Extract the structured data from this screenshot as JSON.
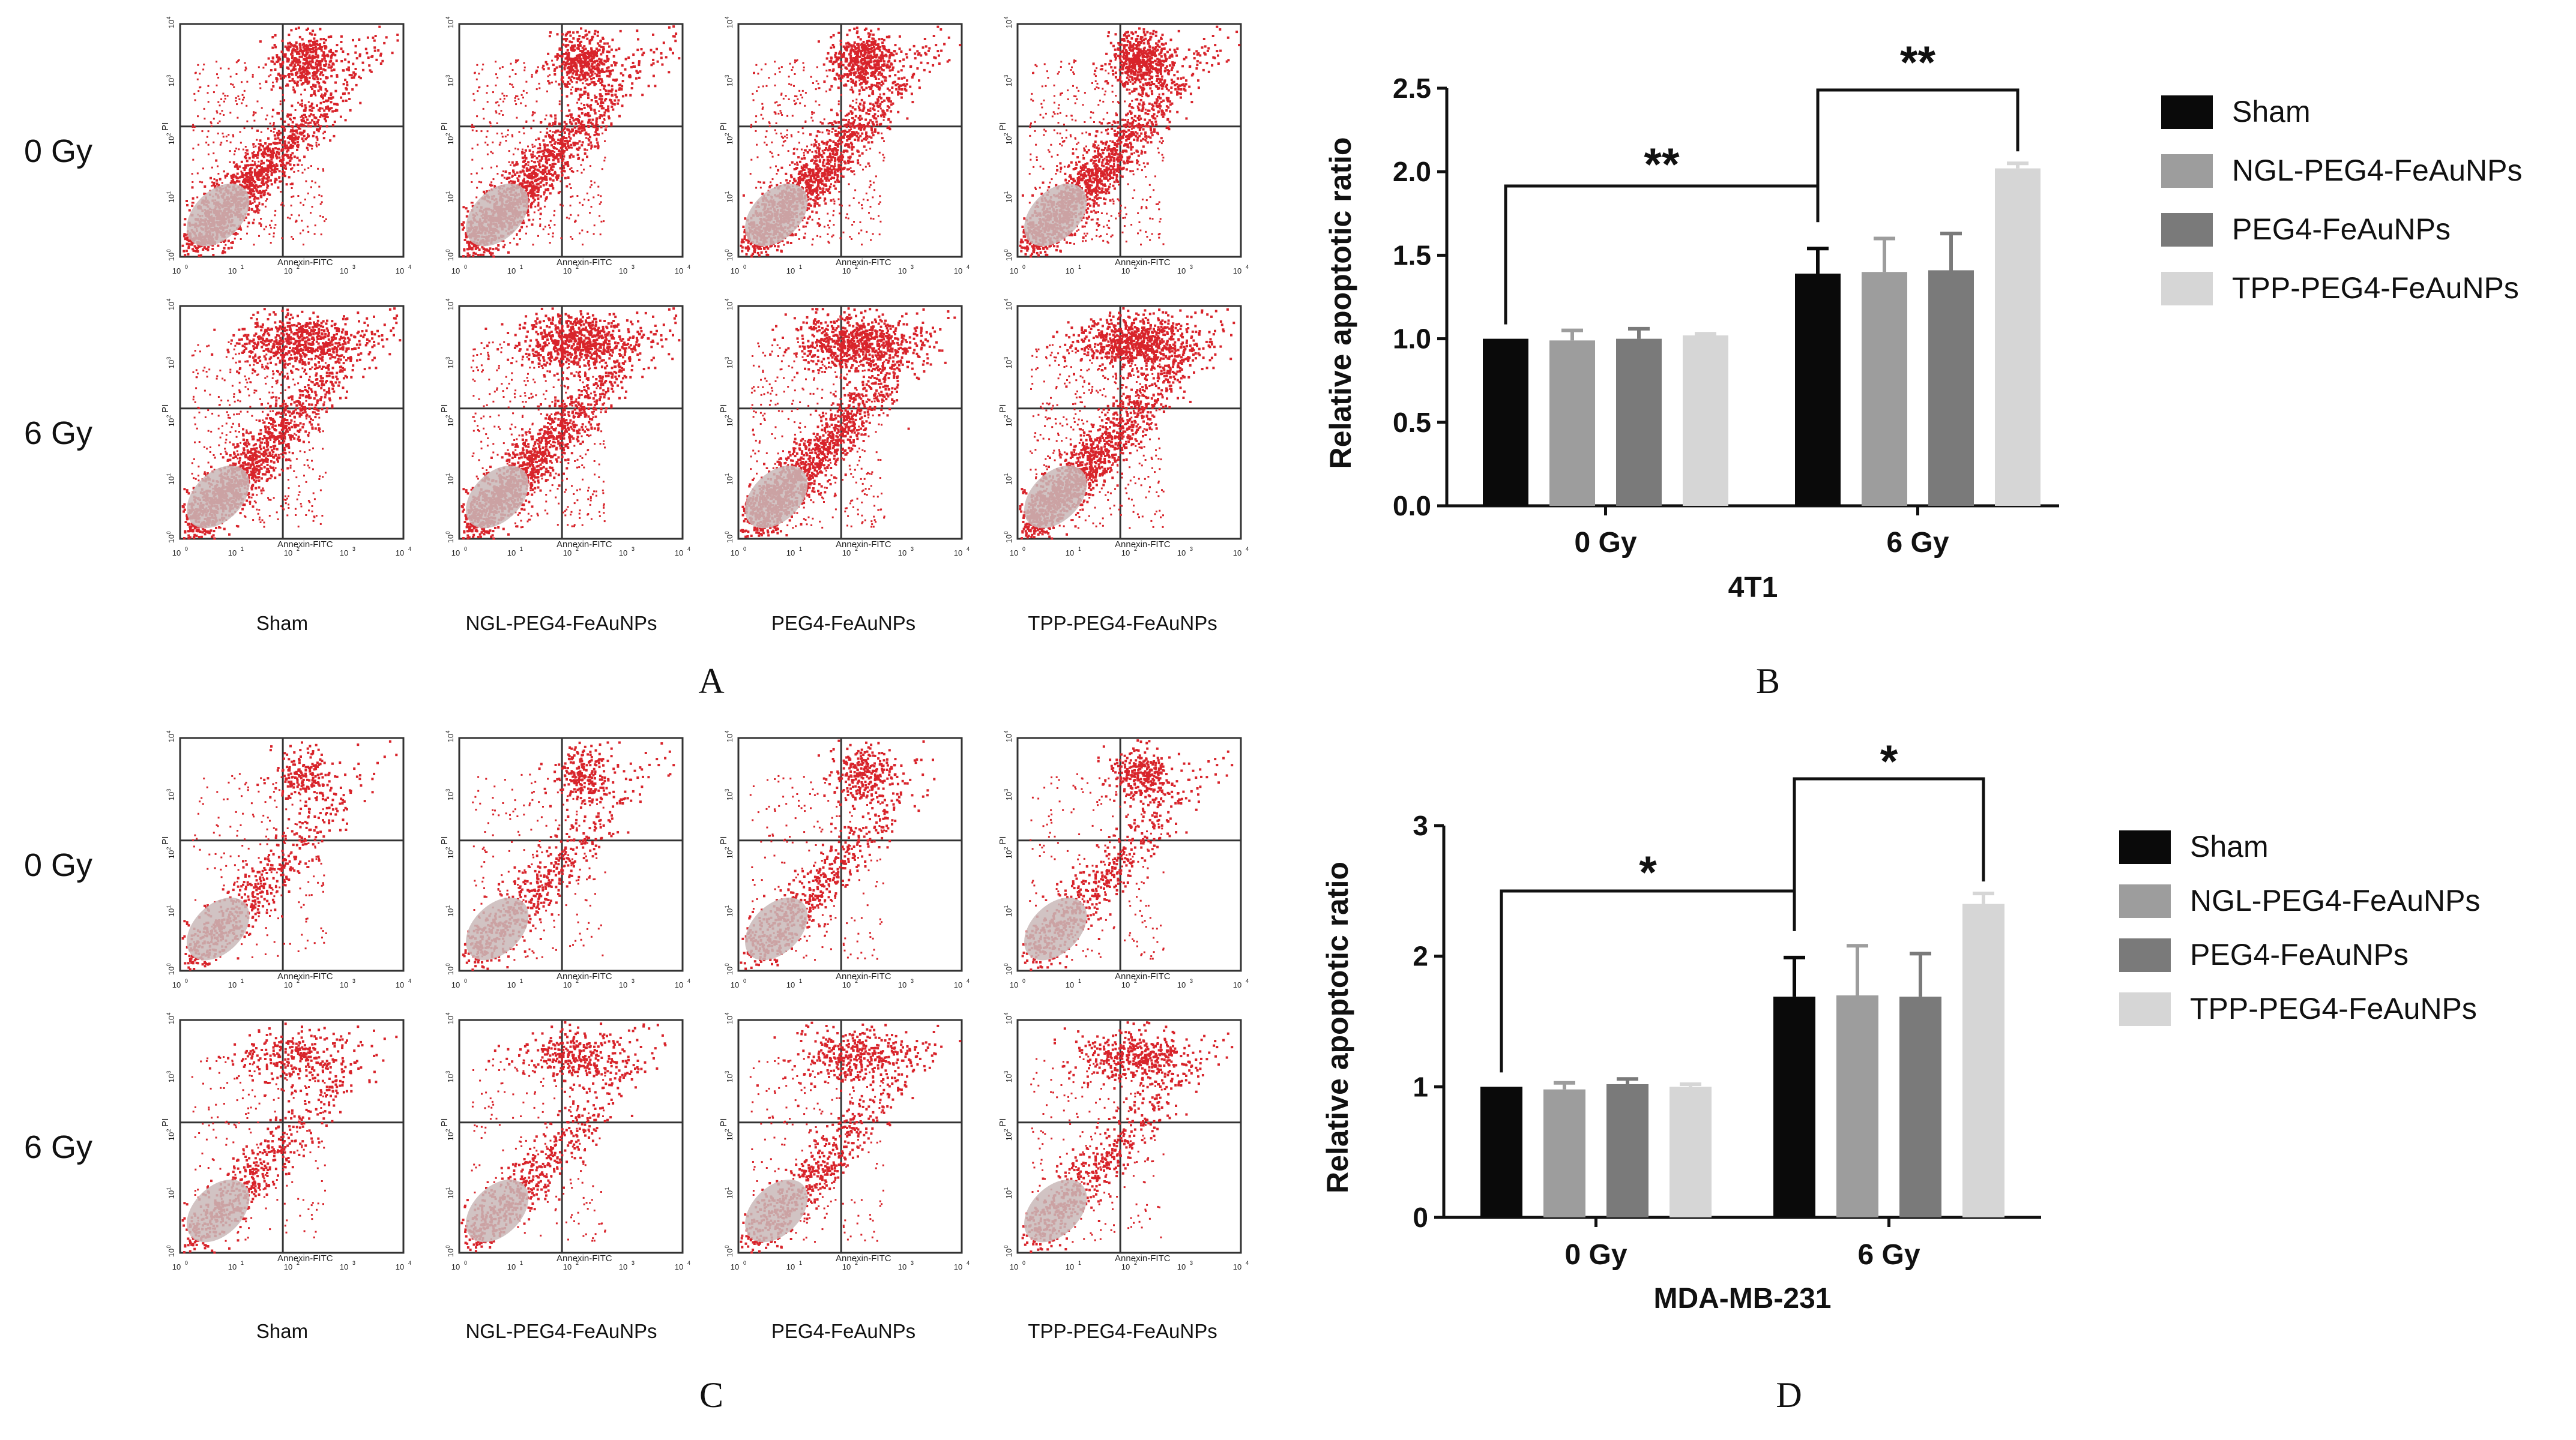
{
  "flow_panels": [
    {
      "letter": "A",
      "doses": [
        "0 Gy",
        "6 Gy"
      ],
      "groups": [
        "Sham",
        "NGL-PEG4-FeAuNPs",
        "PEG4-FeAuNPs",
        "TPP-PEG4-FeAuNPs"
      ],
      "x_axis_label": "Annexin-FITC",
      "y_axis_label": "PI",
      "tick_labels": [
        "10",
        "10",
        "10",
        "10",
        "10"
      ],
      "tick_exponents": [
        "0",
        "1",
        "2",
        "3",
        "4"
      ]
    },
    {
      "letter": "C",
      "doses": [
        "0 Gy",
        "6 Gy"
      ],
      "groups": [
        "Sham",
        "NGL-PEG4-FeAuNPs",
        "PEG4-FeAuNPs",
        "TPP-PEG4-FeAuNPs"
      ],
      "x_axis_label": "Annexin-FITC",
      "y_axis_label": "PI",
      "tick_labels": [
        "10",
        "10",
        "10",
        "10",
        "10"
      ],
      "tick_exponents": [
        "0",
        "1",
        "2",
        "3",
        "4"
      ]
    }
  ],
  "colors": {
    "dots": "#d8242b",
    "core": "#c9b8b8",
    "series": [
      "#0a0a0a",
      "#9d9d9d",
      "#7a7a7a",
      "#d6d6d6"
    ]
  },
  "chart_data": [
    {
      "type": "bar",
      "letter": "B",
      "title": "4T1",
      "xlabel": "4T1",
      "ylabel": "Relative apoptotic ratio",
      "ylim": [
        0,
        2.5
      ],
      "yticks": [
        "0.0",
        "0.5",
        "1.0",
        "1.5",
        "2.0",
        "2.5"
      ],
      "categories": [
        "0 Gy",
        "6 Gy"
      ],
      "series": [
        {
          "name": "Sham",
          "values": [
            1.0,
            1.39
          ],
          "errors": [
            0.0,
            0.15
          ]
        },
        {
          "name": "NGL-PEG4-FeAuNPs",
          "values": [
            0.99,
            1.4
          ],
          "errors": [
            0.06,
            0.2
          ]
        },
        {
          "name": "PEG4-FeAuNPs",
          "values": [
            1.0,
            1.41
          ],
          "errors": [
            0.06,
            0.22
          ]
        },
        {
          "name": "TPP-PEG4-FeAuNPs",
          "values": [
            1.02,
            2.02
          ],
          "errors": [
            0.01,
            0.03
          ]
        }
      ],
      "significance": [
        {
          "label": "**",
          "from": "Sham 0 Gy",
          "to": "Sham 6 Gy"
        },
        {
          "label": "**",
          "from": "Sham 6 Gy",
          "to": "TPP-PEG4-FeAuNPs 6 Gy"
        }
      ],
      "legend": "right",
      "grid": false
    },
    {
      "type": "bar",
      "letter": "D",
      "title": "MDA-MB-231",
      "xlabel": "MDA-MB-231",
      "ylabel": "Relative apoptotic ratio",
      "ylim": [
        0,
        3
      ],
      "yticks": [
        "0",
        "1",
        "2",
        "3"
      ],
      "categories": [
        "0 Gy",
        "6 Gy"
      ],
      "series": [
        {
          "name": "Sham",
          "values": [
            1.0,
            1.69
          ],
          "errors": [
            0.0,
            0.3
          ]
        },
        {
          "name": "NGL-PEG4-FeAuNPs",
          "values": [
            0.98,
            1.7
          ],
          "errors": [
            0.05,
            0.38
          ]
        },
        {
          "name": "PEG4-FeAuNPs",
          "values": [
            1.02,
            1.69
          ],
          "errors": [
            0.04,
            0.33
          ]
        },
        {
          "name": "TPP-PEG4-FeAuNPs",
          "values": [
            1.0,
            2.4
          ],
          "errors": [
            0.02,
            0.08
          ]
        }
      ],
      "significance": [
        {
          "label": "*",
          "from": "Sham 0 Gy",
          "to": "Sham 6 Gy"
        },
        {
          "label": "*",
          "from": "Sham 6 Gy",
          "to": "TPP-PEG4-FeAuNPs 6 Gy"
        }
      ],
      "legend": "right",
      "grid": false
    }
  ]
}
